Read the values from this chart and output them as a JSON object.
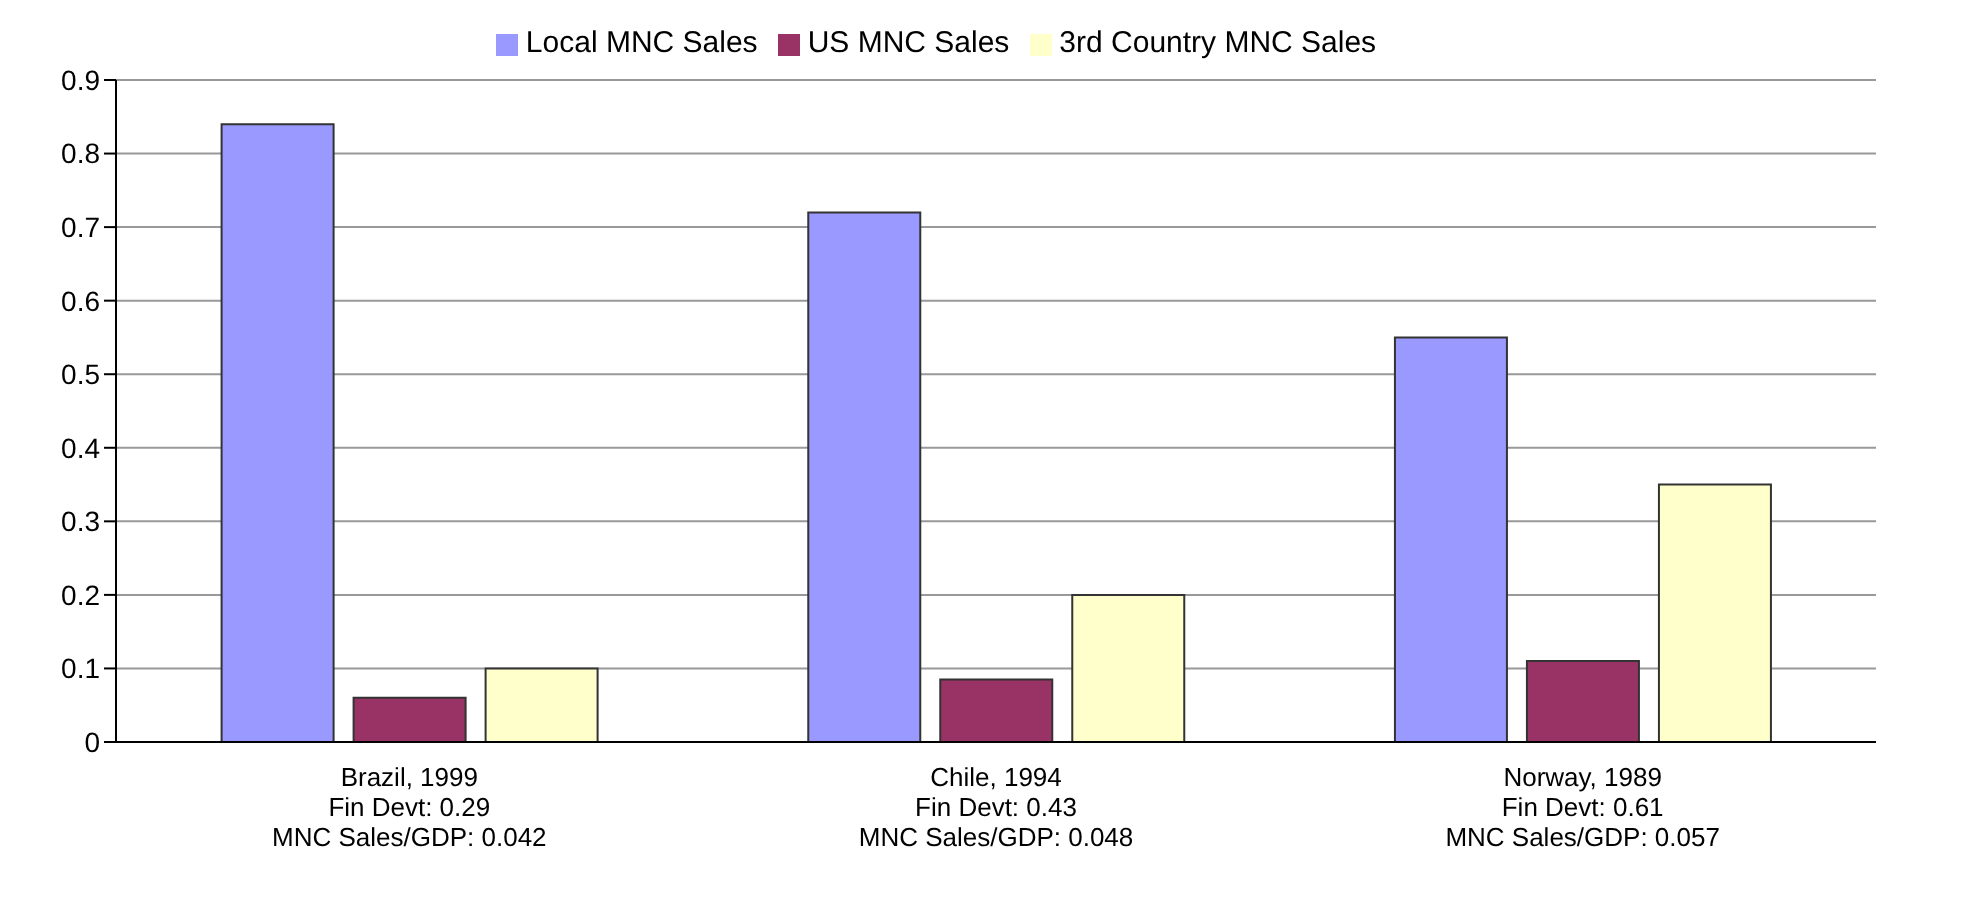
{
  "chart_data": {
    "type": "bar",
    "categories": [
      "Brazil, 1999\nFin Devt: 0.29\nMNC Sales/GDP: 0.042",
      "Chile, 1994\nFin Devt: 0.43\nMNC Sales/GDP: 0.048",
      "Norway, 1989\nFin Devt: 0.61\nMNC Sales/GDP: 0.057"
    ],
    "series": [
      {
        "name": "Local MNC Sales",
        "color": "#9999ff",
        "values": [
          0.84,
          0.72,
          0.55
        ]
      },
      {
        "name": "US MNC Sales",
        "color": "#993366",
        "values": [
          0.06,
          0.085,
          0.11
        ]
      },
      {
        "name": "3rd Country MNC Sales",
        "color": "#ffffcc",
        "values": [
          0.1,
          0.2,
          0.35
        ]
      }
    ],
    "ylim": [
      0,
      0.9
    ],
    "yticks": [
      0,
      0.1,
      0.2,
      0.3,
      0.4,
      0.5,
      0.6,
      0.7,
      0.8,
      0.9
    ],
    "grid": "y",
    "legend": "top"
  }
}
